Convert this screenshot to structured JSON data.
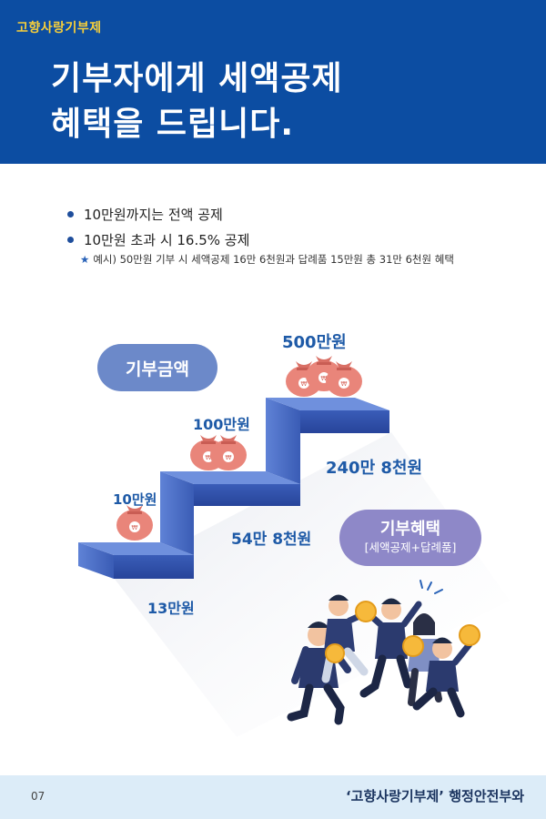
{
  "header": {
    "brand": "고향사랑기부제",
    "headline_line1": "기부자에게 세액공제",
    "headline_line2": "혜택을 드립니다."
  },
  "bullets": [
    "10만원까지는 전액 공제",
    "10만원 초과 시 16.5% 공제"
  ],
  "note": {
    "star": "★",
    "text": "예시) 50만원 기부 시 세액공제 16만 6천원과 답례품 15만원 총 31만 6천원 혜택"
  },
  "illustration": {
    "amount_pill": "기부금액",
    "benefit_pill_title": "기부혜택",
    "benefit_pill_sub": "[세액공제+답례품]",
    "steps": [
      {
        "amount": "10만원",
        "benefit": "13만원",
        "bags": 1
      },
      {
        "amount": "100만원",
        "benefit": "54만 8천원",
        "bags": 2
      },
      {
        "amount": "500만원",
        "benefit": "240만 8천원",
        "bags": 3
      }
    ],
    "coin_symbol": "₩",
    "colors": {
      "step_top": "#4a6fc6",
      "step_front": "#2f4fa8",
      "bag": "#e9857a",
      "coin": "#f6b93b"
    }
  },
  "footer": {
    "page": "07",
    "credit": "‘고향사랑기부제’ 행정안전부와"
  }
}
